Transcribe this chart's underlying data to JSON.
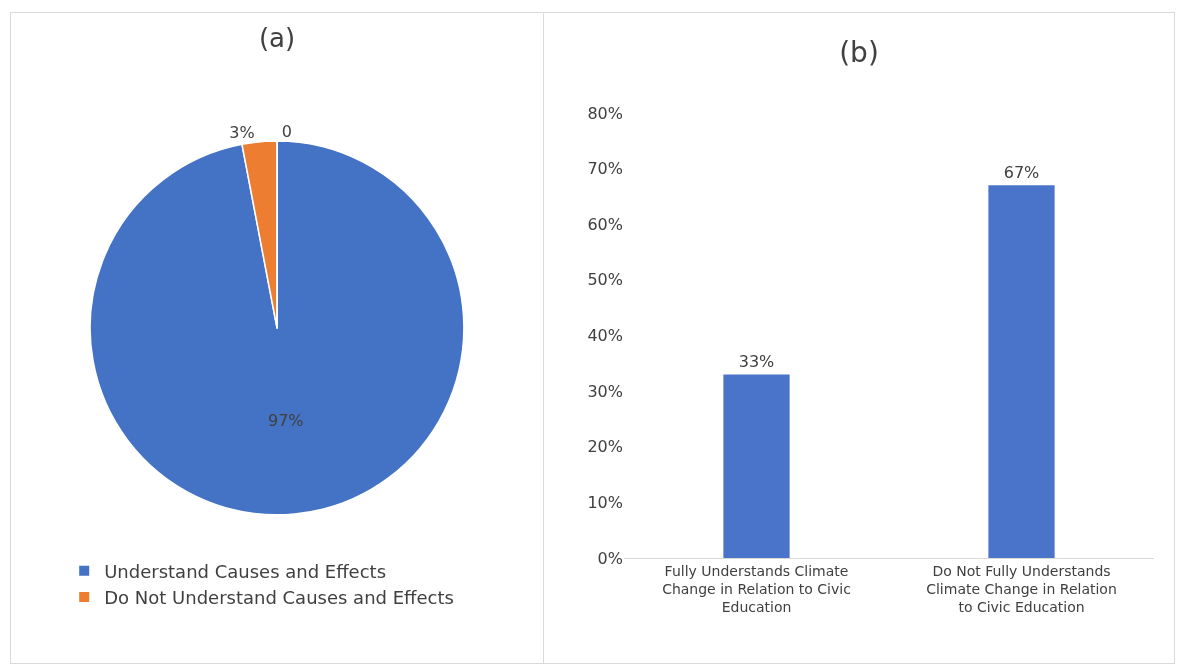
{
  "chart_data": [
    {
      "type": "pie",
      "title": "(a)",
      "categories": [
        "Understand Causes and Effects",
        "Do Not Understand Causes and Effects",
        null
      ],
      "values": [
        97,
        3,
        0
      ],
      "value_labels": [
        "97%",
        "3%",
        "0"
      ],
      "colors": [
        "#4472c4",
        "#ed7d31",
        "#a5a5a5"
      ],
      "legend": "bottom left"
    },
    {
      "type": "bar",
      "title": "(b)",
      "categories": [
        "Fully Understands  Climate Change in Relation  to Civic Education",
        "Do Not Fully Understands Climate Change in Relation to Civic Education"
      ],
      "values": [
        33,
        67
      ],
      "value_labels": [
        "33%",
        "67%"
      ],
      "color": "#4a74c9",
      "ylim": [
        0,
        80
      ],
      "yticks": [
        {
          "value": 0,
          "label": "0%"
        },
        {
          "value": 10,
          "label": "10%"
        },
        {
          "value": 20,
          "label": "20%"
        },
        {
          "value": 30,
          "label": "30%"
        },
        {
          "value": 40,
          "label": "40%"
        },
        {
          "value": 50,
          "label": "50%"
        },
        {
          "value": 60,
          "label": "60%"
        },
        {
          "value": 70,
          "label": "70%"
        },
        {
          "value": 80,
          "label": "80%"
        }
      ],
      "grid": false
    }
  ]
}
